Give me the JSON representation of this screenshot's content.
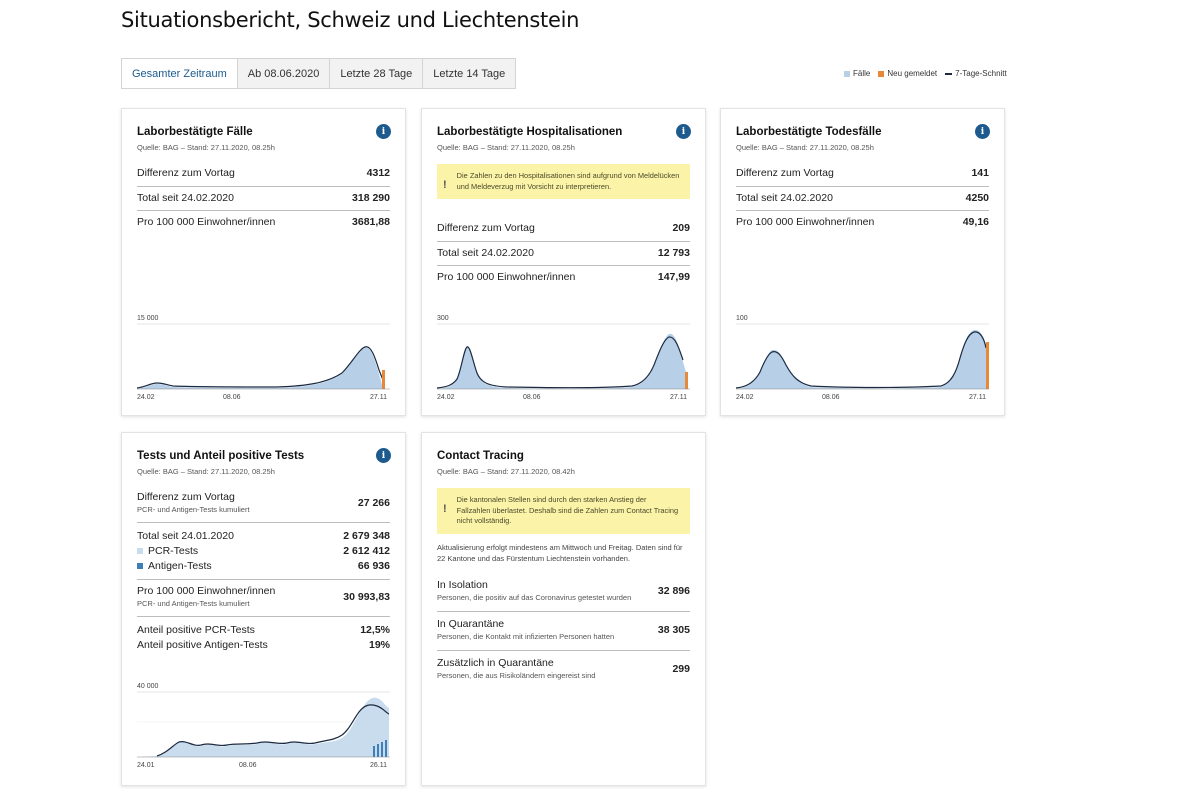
{
  "page_title": "Situationsbericht, Schweiz und Liechtenstein",
  "tabs": [
    "Gesamter Zeitraum",
    "Ab 08.06.2020",
    "Letzte 28 Tage",
    "Letzte 14 Tage"
  ],
  "legend": {
    "faelle": "Fälle",
    "neu": "Neu gemeldet",
    "schnitt": "7-Tage-Schnitt"
  },
  "colors": {
    "bars": "#b7d0e8",
    "new_reports": "#e8893a",
    "avg_line": "#1b2a41",
    "pcr": "#c9dcee",
    "antigen": "#3d7fb8",
    "accent": "#1d5b8f",
    "warning_bg": "#fbf3a8"
  },
  "cards": {
    "faelle": {
      "title": "Laborbestätigte Fälle",
      "source": "Quelle: BAG – Stand: 27.11.2020, 08.25h",
      "rows": [
        {
          "label": "Differenz zum Vortag",
          "value": "4312"
        },
        {
          "label": "Total seit 24.02.2020",
          "value": "318 290"
        },
        {
          "label": "Pro 100 000 Einwohner/innen",
          "value": "3681,88"
        }
      ],
      "chart_ymax": "15 000",
      "ticks": [
        "24.02",
        "08.06",
        "27.11"
      ]
    },
    "hosp": {
      "title": "Laborbestätigte Hospitalisationen",
      "source": "Quelle: BAG – Stand: 27.11.2020, 08.25h",
      "warning": "Die Zahlen zu den Hospitalisationen sind aufgrund von Meldelücken und Meldeverzug mit Vorsicht zu interpretieren.",
      "rows": [
        {
          "label": "Differenz zum Vortag",
          "value": "209"
        },
        {
          "label": "Total seit 24.02.2020",
          "value": "12 793"
        },
        {
          "label": "Pro 100 000 Einwohner/innen",
          "value": "147,99"
        }
      ],
      "chart_ymax": "300",
      "ticks": [
        "24.02",
        "08.06",
        "27.11"
      ]
    },
    "tod": {
      "title": "Laborbestätigte Todesfälle",
      "source": "Quelle: BAG – Stand: 27.11.2020, 08.25h",
      "rows": [
        {
          "label": "Differenz zum Vortag",
          "value": "141"
        },
        {
          "label": "Total seit 24.02.2020",
          "value": "4250"
        },
        {
          "label": "Pro 100 000 Einwohner/innen",
          "value": "49,16"
        }
      ],
      "chart_ymax": "100",
      "ticks": [
        "24.02",
        "08.06",
        "27.11"
      ]
    },
    "tests": {
      "title": "Tests und Anteil positive Tests",
      "source": "Quelle: BAG – Stand: 27.11.2020, 08.25h",
      "diff_label": "Differenz zum Vortag",
      "diff_sub": "PCR- und Antigen-Tests kumuliert",
      "diff_value": "27 266",
      "total_label": "Total seit 24.01.2020",
      "total_value": "2 679 348",
      "pcr_label": "PCR-Tests",
      "pcr_value": "2 612 412",
      "antigen_label": "Antigen-Tests",
      "antigen_value": "66 936",
      "per100_label": "Pro 100 000 Einwohner/innen",
      "per100_sub": "PCR- und Antigen-Tests kumuliert",
      "per100_value": "30 993,83",
      "pos_pcr_label": "Anteil positive PCR-Tests",
      "pos_pcr_value": "12,5%",
      "pos_ag_label": "Anteil positive Antigen-Tests",
      "pos_ag_value": "19%",
      "chart_ymax": "40 000",
      "ticks": [
        "24.01",
        "08.06",
        "26.11"
      ]
    },
    "contact": {
      "title": "Contact Tracing",
      "source": "Quelle: BAG – Stand: 27.11.2020, 08.42h",
      "warning": "Die kantonalen Stellen sind durch den starken Anstieg der Fallzahlen überlastet. Deshalb sind die Zahlen zum Contact Tracing nicht vollständig.",
      "note": "Aktualisierung erfolgt mindestens am Mittwoch und Freitag. Daten sind für 22 Kantone und das Fürstentum Liechtenstein vorhanden.",
      "rows": [
        {
          "label": "In Isolation",
          "sub": "Personen, die positiv auf das Coronavirus getestet wurden",
          "value": "32 896"
        },
        {
          "label": "In Quarantäne",
          "sub": "Personen, die Kontakt mit infizierten Personen hatten",
          "value": "38 305"
        },
        {
          "label": "Zusätzlich in Quarantäne",
          "sub": "Personen, die aus Risikoländern eingereist sind",
          "value": "299"
        }
      ]
    }
  }
}
